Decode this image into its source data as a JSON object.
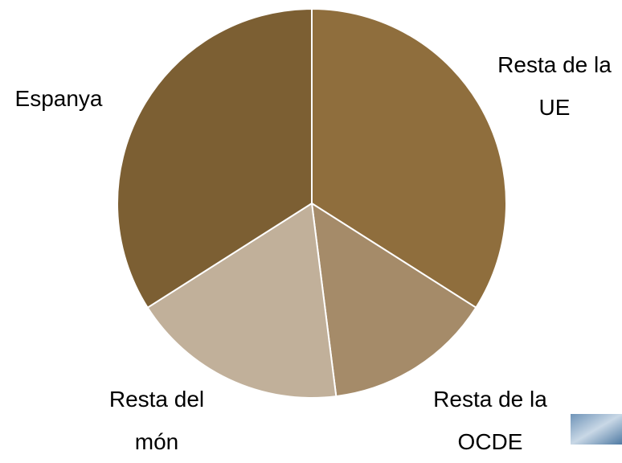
{
  "chart_data": {
    "type": "pie",
    "categories": [
      "Resta de la UE",
      "Resta de la OCDE",
      "Resta del món",
      "Espanya"
    ],
    "values": [
      34,
      14,
      18,
      34
    ],
    "colors": [
      "#8f6e3d",
      "#a58b69",
      "#c1b09a",
      "#7c5f33"
    ]
  }
}
